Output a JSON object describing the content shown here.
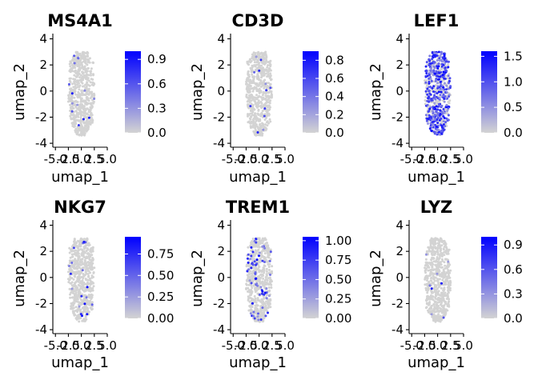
{
  "chart_data": [
    {
      "type": "scatter",
      "title": "MS4A1",
      "xlabel": "umap_1",
      "ylabel": "umap_2",
      "xlim": [
        -5.5,
        5.0
      ],
      "ylim": [
        -4.3,
        4.4
      ],
      "xticks": [
        "-5.0",
        "-2.5",
        "0.0",
        "2.5",
        "5.0"
      ],
      "yticks": [
        "-4",
        "-2",
        "0",
        "2",
        "4"
      ],
      "color_scale": {
        "low": "#d3d3d3",
        "high": "#0000ff",
        "min": 0.0,
        "max": 1.0
      },
      "legend_ticks": [
        "0.0",
        "0.3",
        "0.6",
        "0.9"
      ],
      "expressing_fraction": 0.02
    },
    {
      "type": "scatter",
      "title": "CD3D",
      "xlabel": "umap_1",
      "ylabel": "umap_2",
      "xlim": [
        -5.5,
        5.0
      ],
      "ylim": [
        -4.3,
        4.4
      ],
      "xticks": [
        "-5.0",
        "-2.5",
        "0.0",
        "2.5",
        "5.0"
      ],
      "yticks": [
        "-4",
        "-2",
        "0",
        "2",
        "4"
      ],
      "color_scale": {
        "low": "#d3d3d3",
        "high": "#0000ff",
        "min": 0.0,
        "max": 0.9
      },
      "legend_ticks": [
        "0.0",
        "0.2",
        "0.4",
        "0.6",
        "0.8"
      ],
      "expressing_fraction": 0.02
    },
    {
      "type": "scatter",
      "title": "LEF1",
      "xlabel": "umap_1",
      "ylabel": "umap_2",
      "xlim": [
        -5.5,
        5.0
      ],
      "ylim": [
        -4.3,
        4.4
      ],
      "xticks": [
        "-5.0",
        "-2.5",
        "0.0",
        "2.5",
        "5.0"
      ],
      "yticks": [
        "-4",
        "-2",
        "0",
        "2",
        "4"
      ],
      "color_scale": {
        "low": "#d3d3d3",
        "high": "#0000ff",
        "min": 0.0,
        "max": 1.6
      },
      "legend_ticks": [
        "0.0",
        "0.5",
        "1.0",
        "1.5"
      ],
      "expressing_fraction": 0.6
    },
    {
      "type": "scatter",
      "title": "NKG7",
      "xlabel": "umap_1",
      "ylabel": "umap_2",
      "xlim": [
        -5.5,
        5.0
      ],
      "ylim": [
        -4.3,
        4.4
      ],
      "xticks": [
        "-5.0",
        "-2.5",
        "0.0",
        "2.5",
        "5.0"
      ],
      "yticks": [
        "-4",
        "-2",
        "0",
        "2",
        "4"
      ],
      "color_scale": {
        "low": "#d3d3d3",
        "high": "#0000ff",
        "min": 0.0,
        "max": 0.95
      },
      "legend_ticks": [
        "0.00",
        "0.25",
        "0.50",
        "0.75"
      ],
      "expressing_fraction": 0.03
    },
    {
      "type": "scatter",
      "title": "TREM1",
      "xlabel": "umap_1",
      "ylabel": "umap_2",
      "xlim": [
        -5.5,
        5.0
      ],
      "ylim": [
        -4.3,
        4.4
      ],
      "xticks": [
        "-5.0",
        "-2.5",
        "0.0",
        "2.5",
        "5.0"
      ],
      "yticks": [
        "-4",
        "-2",
        "0",
        "2",
        "4"
      ],
      "color_scale": {
        "low": "#d3d3d3",
        "high": "#0000ff",
        "min": 0.0,
        "max": 1.05
      },
      "legend_ticks": [
        "0.00",
        "0.25",
        "0.50",
        "0.75",
        "1.00"
      ],
      "expressing_fraction": 0.1
    },
    {
      "type": "scatter",
      "title": "LYZ",
      "xlabel": "umap_1",
      "ylabel": "umap_2",
      "xlim": [
        -5.5,
        5.0
      ],
      "ylim": [
        -4.3,
        4.4
      ],
      "xticks": [
        "-5.0",
        "-2.5",
        "0.0",
        "2.5",
        "5.0"
      ],
      "yticks": [
        "-4",
        "-2",
        "0",
        "2",
        "4"
      ],
      "color_scale": {
        "low": "#d3d3d3",
        "high": "#0000ff",
        "min": 0.0,
        "max": 1.0
      },
      "legend_ticks": [
        "0.0",
        "0.3",
        "0.6",
        "0.9"
      ],
      "expressing_fraction": 0.01
    }
  ]
}
